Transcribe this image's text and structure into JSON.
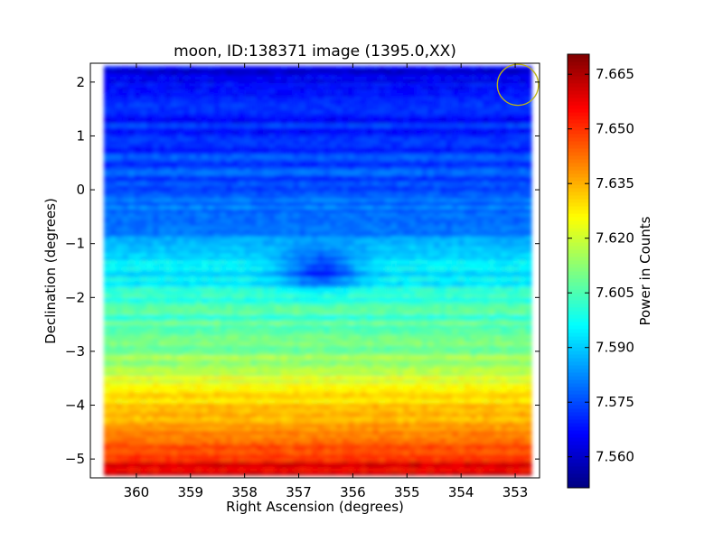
{
  "chart_data": {
    "type": "heatmap",
    "title": "moon, ID:138371 image (1395.0,XX)",
    "xlabel": "Right Ascension (degrees)",
    "ylabel": "Declination (degrees)",
    "x_axis": {
      "min": 360.85,
      "max": 352.55,
      "reversed": true
    },
    "y_axis": {
      "min": -5.35,
      "max": 2.35
    },
    "x_ticks": [
      {
        "value": 360,
        "label": "360"
      },
      {
        "value": 359,
        "label": "359"
      },
      {
        "value": 358,
        "label": "358"
      },
      {
        "value": 357,
        "label": "357"
      },
      {
        "value": 356,
        "label": "356"
      },
      {
        "value": 355,
        "label": "355"
      },
      {
        "value": 354,
        "label": "354"
      },
      {
        "value": 353,
        "label": "353"
      }
    ],
    "y_ticks": [
      {
        "value": 2,
        "label": "2"
      },
      {
        "value": 1,
        "label": "1"
      },
      {
        "value": 0,
        "label": "0"
      },
      {
        "value": -1,
        "label": "−1"
      },
      {
        "value": -2,
        "label": "−2"
      },
      {
        "value": -3,
        "label": "−3"
      },
      {
        "value": -4,
        "label": "−4"
      },
      {
        "value": -5,
        "label": "−5"
      }
    ],
    "colorbar": {
      "label": "Power in Counts",
      "min": 7.5515,
      "max": 7.6705,
      "colormap": "jet",
      "ticks": [
        {
          "value": 7.56,
          "label": "7.560"
        },
        {
          "value": 7.575,
          "label": "7.575"
        },
        {
          "value": 7.59,
          "label": "7.590"
        },
        {
          "value": 7.605,
          "label": "7.605"
        },
        {
          "value": 7.62,
          "label": "7.620"
        },
        {
          "value": 7.635,
          "label": "7.635"
        },
        {
          "value": 7.65,
          "label": "7.650"
        },
        {
          "value": 7.665,
          "label": "7.665"
        }
      ]
    },
    "data_extent": {
      "ra": [
        360.6,
        352.7
      ],
      "dec": [
        -5.3,
        2.3
      ]
    },
    "dec_profile": [
      {
        "dec": 2.3,
        "value": 7.562
      },
      {
        "dec": 1.5,
        "value": 7.568
      },
      {
        "dec": 0.5,
        "value": 7.574
      },
      {
        "dec": -0.5,
        "value": 7.58
      },
      {
        "dec": -1.2,
        "value": 7.59
      },
      {
        "dec": -2.0,
        "value": 7.6
      },
      {
        "dec": -3.0,
        "value": 7.612
      },
      {
        "dec": -4.0,
        "value": 7.632
      },
      {
        "dec": -4.6,
        "value": 7.642
      },
      {
        "dec": -5.3,
        "value": 7.66
      }
    ],
    "dip_feature": {
      "ra": 356.6,
      "dec": -1.5,
      "value": 7.57
    },
    "circle_marker": {
      "ra": 352.95,
      "dec": 1.95,
      "radius_deg": 0.38,
      "color": "#bdb31a"
    }
  }
}
